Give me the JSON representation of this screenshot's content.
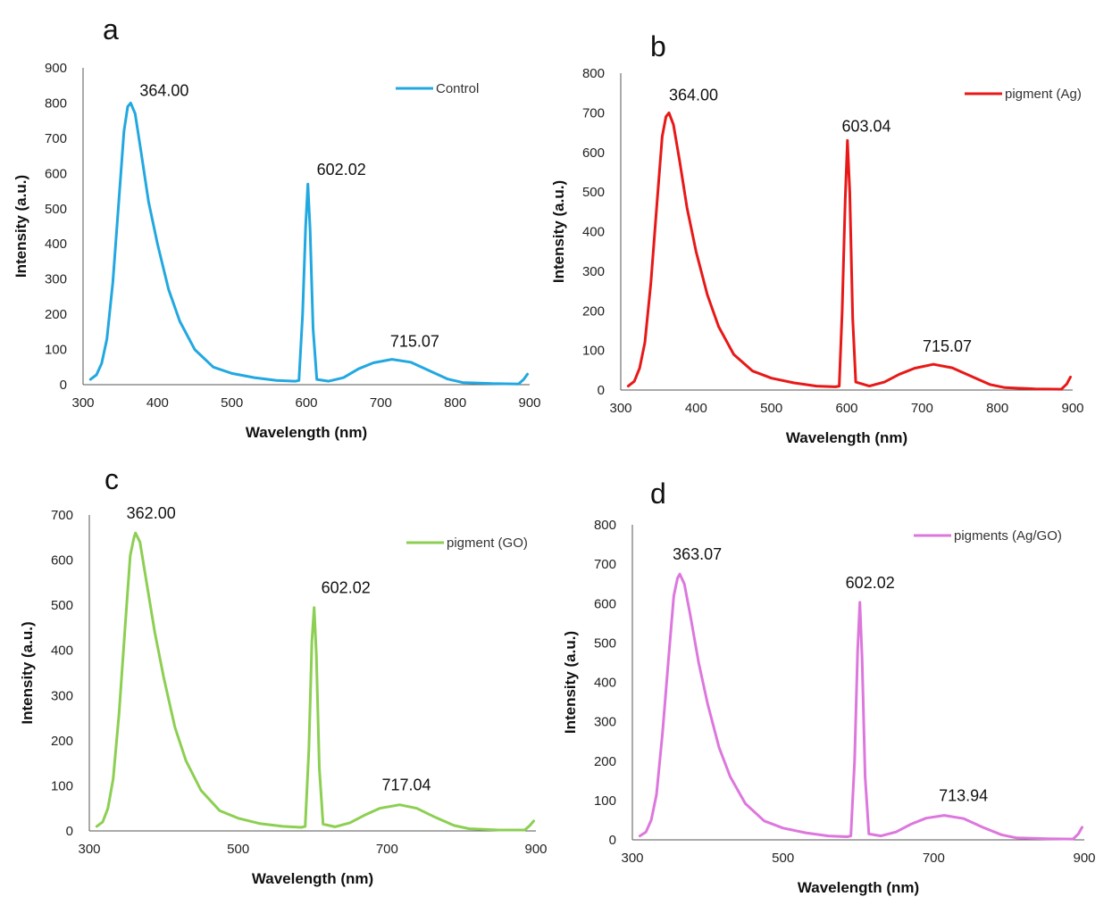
{
  "chart_data": [
    {
      "panel": "a",
      "type": "line",
      "xlabel": "Wavelength (nm)",
      "ylabel": "Intensity (a.u.)",
      "xlim": [
        300,
        900
      ],
      "ylim": [
        0,
        900
      ],
      "xticks": [
        300,
        400,
        500,
        600,
        700,
        800,
        900
      ],
      "yticks": [
        0,
        100,
        200,
        300,
        400,
        500,
        600,
        700,
        800,
        900
      ],
      "legend": "top-right",
      "series": [
        {
          "name": "Control",
          "color": "#22a8e0",
          "points": [
            [
              310,
              15
            ],
            [
              318,
              28
            ],
            [
              325,
              60
            ],
            [
              332,
              130
            ],
            [
              340,
              290
            ],
            [
              348,
              520
            ],
            [
              355,
              720
            ],
            [
              360,
              790
            ],
            [
              364,
              800
            ],
            [
              370,
              770
            ],
            [
              378,
              660
            ],
            [
              388,
              520
            ],
            [
              400,
              400
            ],
            [
              415,
              270
            ],
            [
              430,
              180
            ],
            [
              450,
              100
            ],
            [
              475,
              50
            ],
            [
              500,
              32
            ],
            [
              530,
              20
            ],
            [
              560,
              12
            ],
            [
              585,
              10
            ],
            [
              590,
              12
            ],
            [
              595,
              200
            ],
            [
              599,
              450
            ],
            [
              602,
              570
            ],
            [
              605,
              440
            ],
            [
              609,
              160
            ],
            [
              614,
              15
            ],
            [
              630,
              10
            ],
            [
              650,
              20
            ],
            [
              670,
              45
            ],
            [
              690,
              62
            ],
            [
              715,
              72
            ],
            [
              740,
              64
            ],
            [
              765,
              40
            ],
            [
              790,
              16
            ],
            [
              810,
              6
            ],
            [
              850,
              3
            ],
            [
              885,
              2
            ],
            [
              892,
              15
            ],
            [
              897,
              30
            ]
          ]
        }
      ],
      "annotations": [
        {
          "text": "364.00",
          "x": 364,
          "y": 800
        },
        {
          "text": "602.02",
          "x": 602,
          "y": 570
        },
        {
          "text": "715.07",
          "x": 715,
          "y": 72
        }
      ]
    },
    {
      "panel": "b",
      "type": "line",
      "xlabel": "Wavelength (nm)",
      "ylabel": "Intensity (a.u.)",
      "xlim": [
        300,
        900
      ],
      "ylim": [
        0,
        800
      ],
      "xticks": [
        300,
        400,
        500,
        600,
        700,
        800,
        900
      ],
      "yticks": [
        0,
        100,
        200,
        300,
        400,
        500,
        600,
        700,
        800
      ],
      "legend": "top-right",
      "series": [
        {
          "name": "pigment (Ag)",
          "color": "#e81818",
          "points": [
            [
              310,
              10
            ],
            [
              318,
              22
            ],
            [
              325,
              55
            ],
            [
              332,
              120
            ],
            [
              340,
              270
            ],
            [
              348,
              470
            ],
            [
              355,
              640
            ],
            [
              360,
              690
            ],
            [
              364,
              700
            ],
            [
              370,
              670
            ],
            [
              378,
              580
            ],
            [
              388,
              460
            ],
            [
              400,
              350
            ],
            [
              415,
              240
            ],
            [
              430,
              160
            ],
            [
              450,
              90
            ],
            [
              475,
              48
            ],
            [
              500,
              30
            ],
            [
              530,
              18
            ],
            [
              560,
              10
            ],
            [
              585,
              8
            ],
            [
              590,
              10
            ],
            [
              594,
              200
            ],
            [
              598,
              480
            ],
            [
              601,
              630
            ],
            [
              604,
              500
            ],
            [
              608,
              180
            ],
            [
              612,
              20
            ],
            [
              630,
              10
            ],
            [
              650,
              20
            ],
            [
              670,
              40
            ],
            [
              690,
              55
            ],
            [
              715,
              65
            ],
            [
              740,
              56
            ],
            [
              765,
              35
            ],
            [
              790,
              14
            ],
            [
              810,
              6
            ],
            [
              850,
              3
            ],
            [
              885,
              2
            ],
            [
              892,
              15
            ],
            [
              897,
              33
            ]
          ]
        }
      ],
      "annotations": [
        {
          "text": "364.00",
          "x": 364,
          "y": 700
        },
        {
          "text": "603.04",
          "x": 603,
          "y": 630
        },
        {
          "text": "715.07",
          "x": 715,
          "y": 65
        }
      ]
    },
    {
      "panel": "c",
      "type": "line",
      "xlabel": "Wavelength (nm)",
      "ylabel": "Intensity (a.u.)",
      "xlim": [
        300,
        900
      ],
      "ylim": [
        0,
        700
      ],
      "xticks": [
        300,
        500,
        700,
        900
      ],
      "yticks": [
        0,
        100,
        200,
        300,
        400,
        500,
        600,
        700
      ],
      "legend": "top-right",
      "series": [
        {
          "name": "pigment (GO)",
          "color": "#8ccf52",
          "points": [
            [
              310,
              10
            ],
            [
              318,
              20
            ],
            [
              325,
              50
            ],
            [
              332,
              115
            ],
            [
              340,
              260
            ],
            [
              348,
              450
            ],
            [
              355,
              610
            ],
            [
              360,
              650
            ],
            [
              362,
              660
            ],
            [
              368,
              640
            ],
            [
              376,
              560
            ],
            [
              388,
              440
            ],
            [
              400,
              340
            ],
            [
              415,
              230
            ],
            [
              430,
              155
            ],
            [
              450,
              90
            ],
            [
              475,
              45
            ],
            [
              500,
              28
            ],
            [
              530,
              16
            ],
            [
              560,
              10
            ],
            [
              585,
              8
            ],
            [
              590,
              10
            ],
            [
              595,
              180
            ],
            [
              599,
              420
            ],
            [
              602,
              495
            ],
            [
              605,
              390
            ],
            [
              609,
              140
            ],
            [
              614,
              15
            ],
            [
              630,
              9
            ],
            [
              650,
              18
            ],
            [
              670,
              35
            ],
            [
              690,
              50
            ],
            [
              717,
              58
            ],
            [
              740,
              50
            ],
            [
              765,
              30
            ],
            [
              790,
              12
            ],
            [
              810,
              5
            ],
            [
              850,
              2
            ],
            [
              885,
              2
            ],
            [
              892,
              12
            ],
            [
              897,
              22
            ]
          ]
        }
      ],
      "annotations": [
        {
          "text": "362.00",
          "x": 362,
          "y": 660
        },
        {
          "text": "602.02",
          "x": 602,
          "y": 495
        },
        {
          "text": "717.04",
          "x": 717,
          "y": 58
        }
      ]
    },
    {
      "panel": "d",
      "type": "line",
      "xlabel": "Wavelength (nm)",
      "ylabel": "Intensity (a.u.)",
      "xlim": [
        300,
        900
      ],
      "ylim": [
        0,
        800
      ],
      "xticks": [
        300,
        500,
        700,
        900
      ],
      "yticks": [
        0,
        100,
        200,
        300,
        400,
        500,
        600,
        700,
        800
      ],
      "legend": "top-right",
      "series": [
        {
          "name": "pigments (Ag/GO)",
          "color": "#dd77dd",
          "points": [
            [
              310,
              10
            ],
            [
              318,
              20
            ],
            [
              325,
              50
            ],
            [
              332,
              115
            ],
            [
              340,
              270
            ],
            [
              348,
              460
            ],
            [
              355,
              620
            ],
            [
              360,
              665
            ],
            [
              363,
              675
            ],
            [
              369,
              650
            ],
            [
              377,
              570
            ],
            [
              388,
              450
            ],
            [
              400,
              345
            ],
            [
              415,
              235
            ],
            [
              430,
              160
            ],
            [
              450,
              92
            ],
            [
              475,
              48
            ],
            [
              500,
              30
            ],
            [
              530,
              18
            ],
            [
              560,
              10
            ],
            [
              585,
              8
            ],
            [
              590,
              10
            ],
            [
              595,
              200
            ],
            [
              599,
              480
            ],
            [
              602,
              603
            ],
            [
              605,
              460
            ],
            [
              609,
              160
            ],
            [
              614,
              15
            ],
            [
              630,
              10
            ],
            [
              650,
              20
            ],
            [
              670,
              40
            ],
            [
              690,
              55
            ],
            [
              714,
              62
            ],
            [
              740,
              54
            ],
            [
              765,
              32
            ],
            [
              790,
              13
            ],
            [
              810,
              5
            ],
            [
              850,
              3
            ],
            [
              885,
              2
            ],
            [
              892,
              15
            ],
            [
              897,
              32
            ]
          ]
        }
      ],
      "annotations": [
        {
          "text": "363.07",
          "x": 363,
          "y": 675
        },
        {
          "text": "602.02",
          "x": 602,
          "y": 603
        },
        {
          "text": "713.94",
          "x": 714,
          "y": 62
        }
      ]
    }
  ]
}
